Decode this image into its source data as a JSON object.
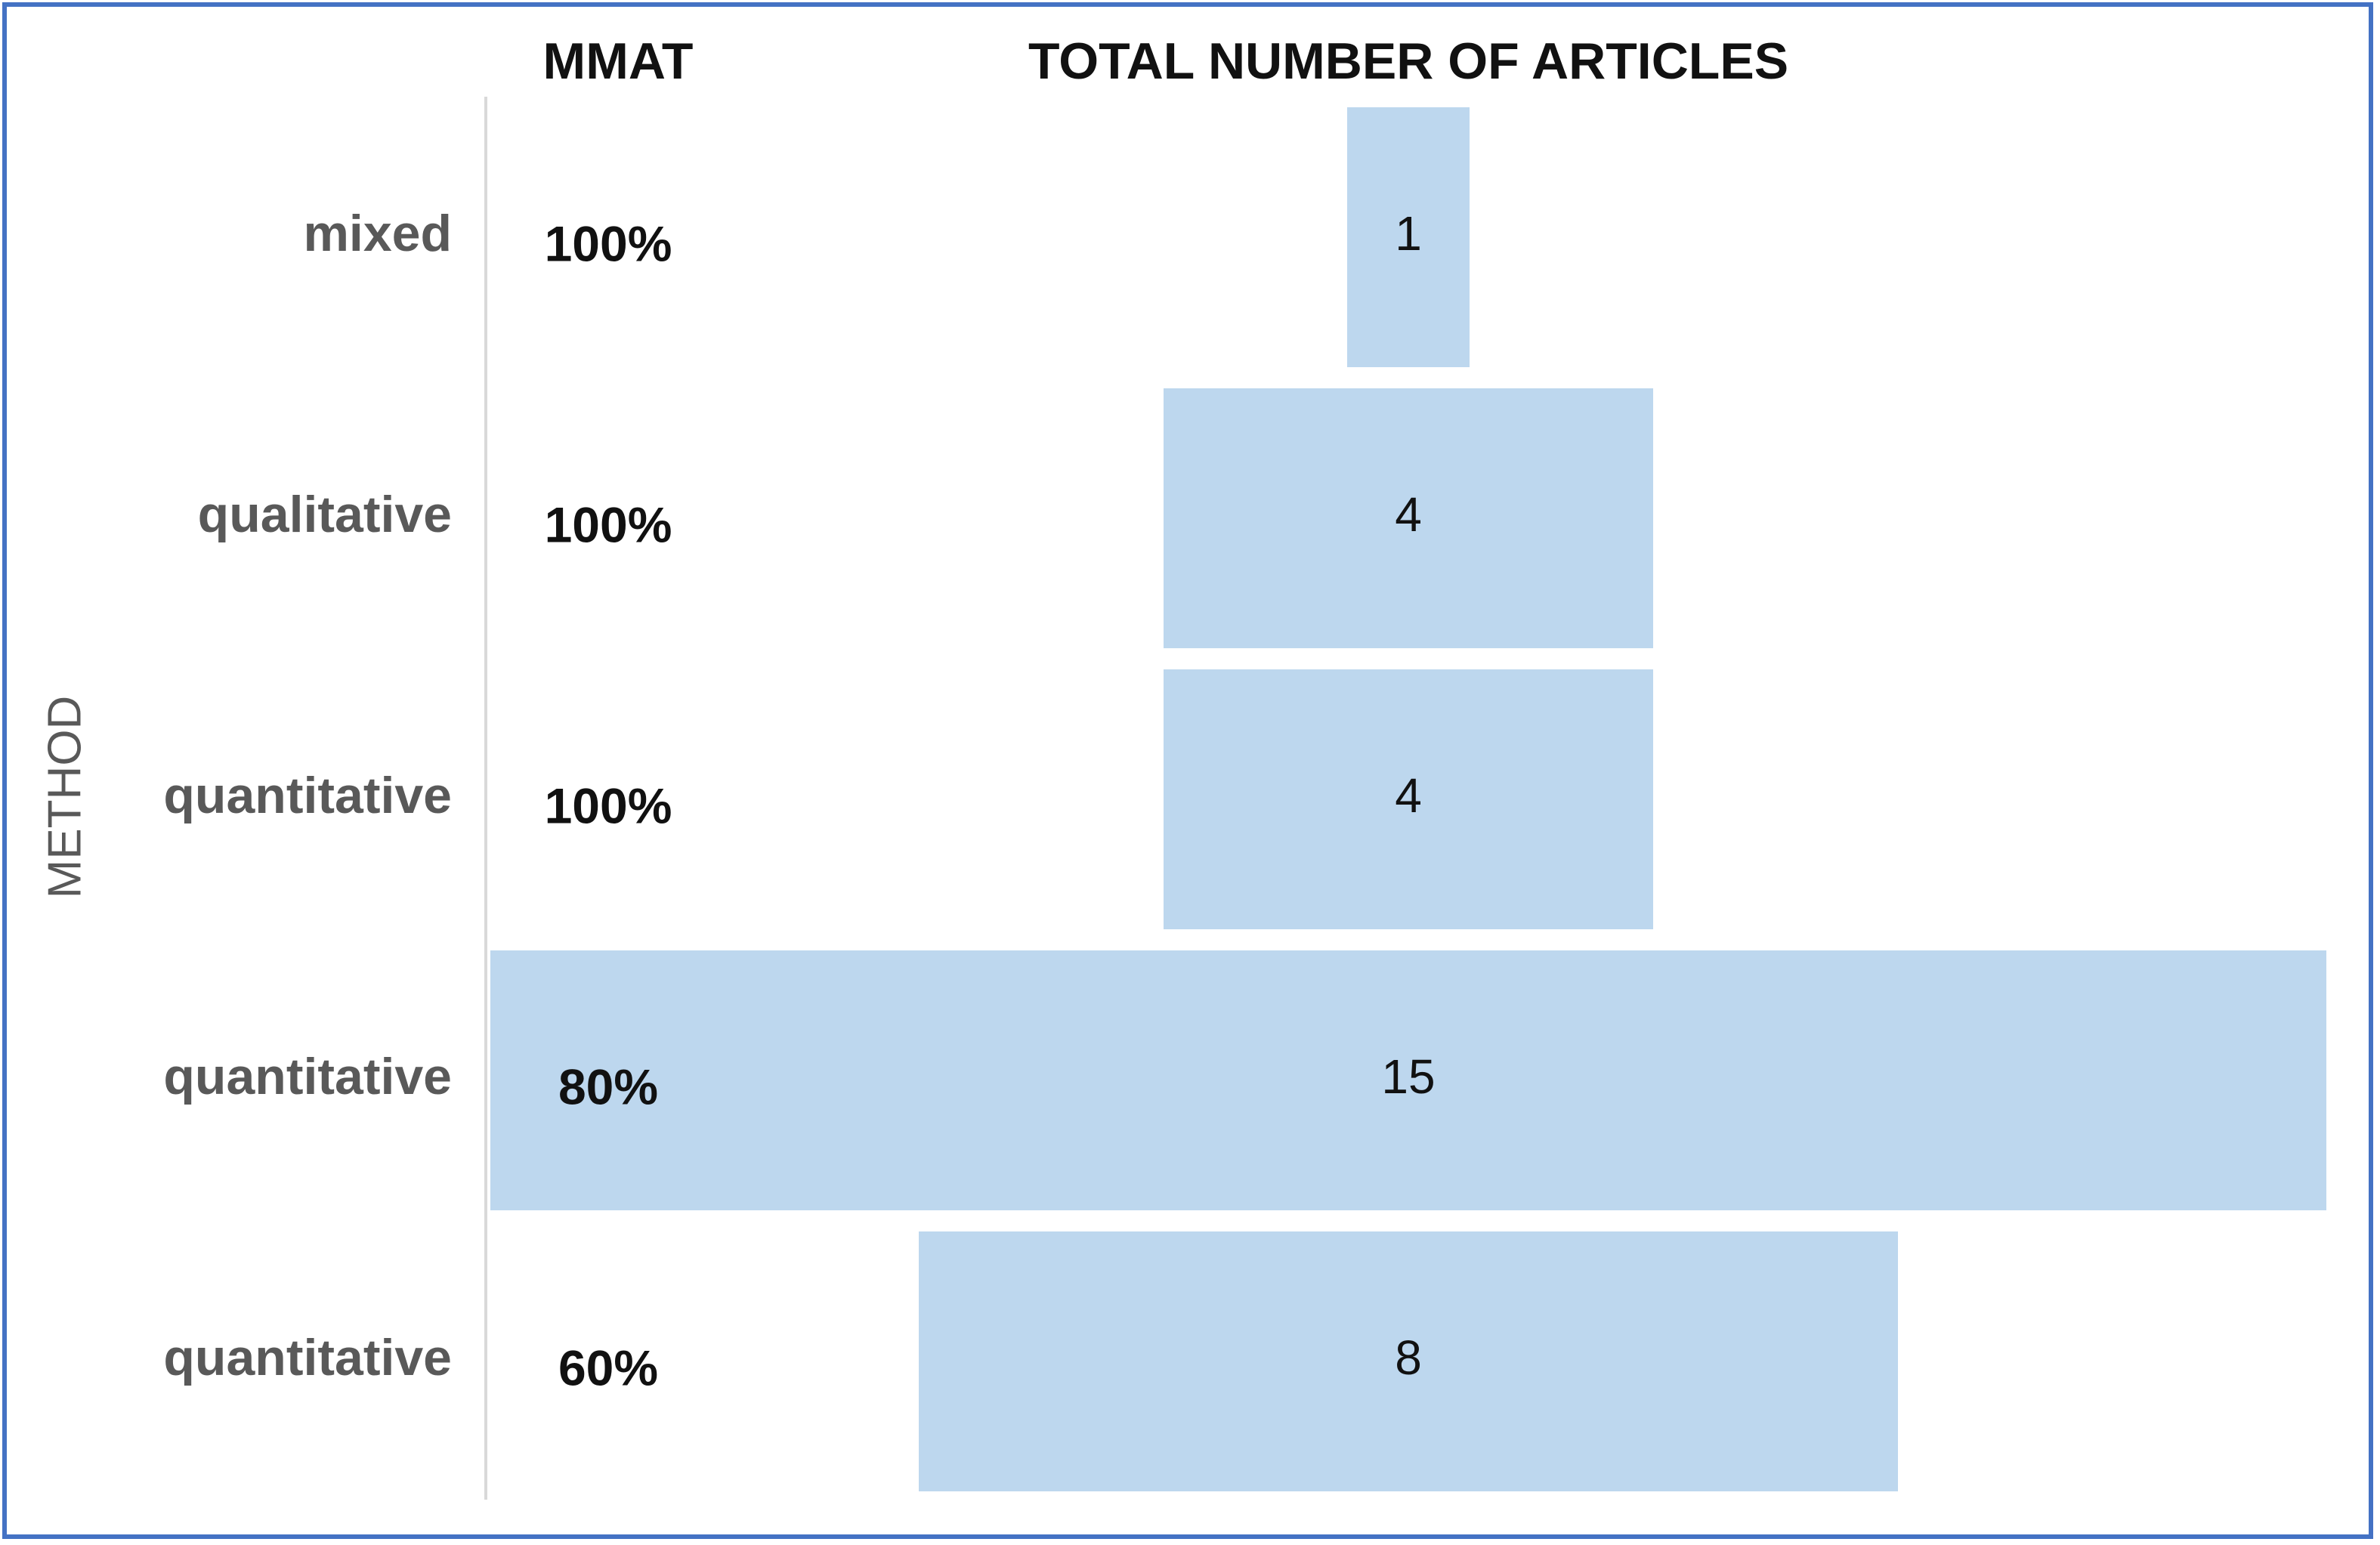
{
  "chart_data": {
    "type": "funnel",
    "column_headers": [
      "MMAT",
      "TOTAL NUMBER OF ARTICLES"
    ],
    "y_label": "METHOD",
    "categories": [
      "mixed",
      "qualitative",
      "quantitative",
      "quantitative",
      "quantitative"
    ],
    "mmat": [
      "100%",
      "100%",
      "100%",
      "80%",
      "60%"
    ],
    "values": [
      1,
      4,
      4,
      15,
      8
    ],
    "color": "#bdd7ee"
  }
}
